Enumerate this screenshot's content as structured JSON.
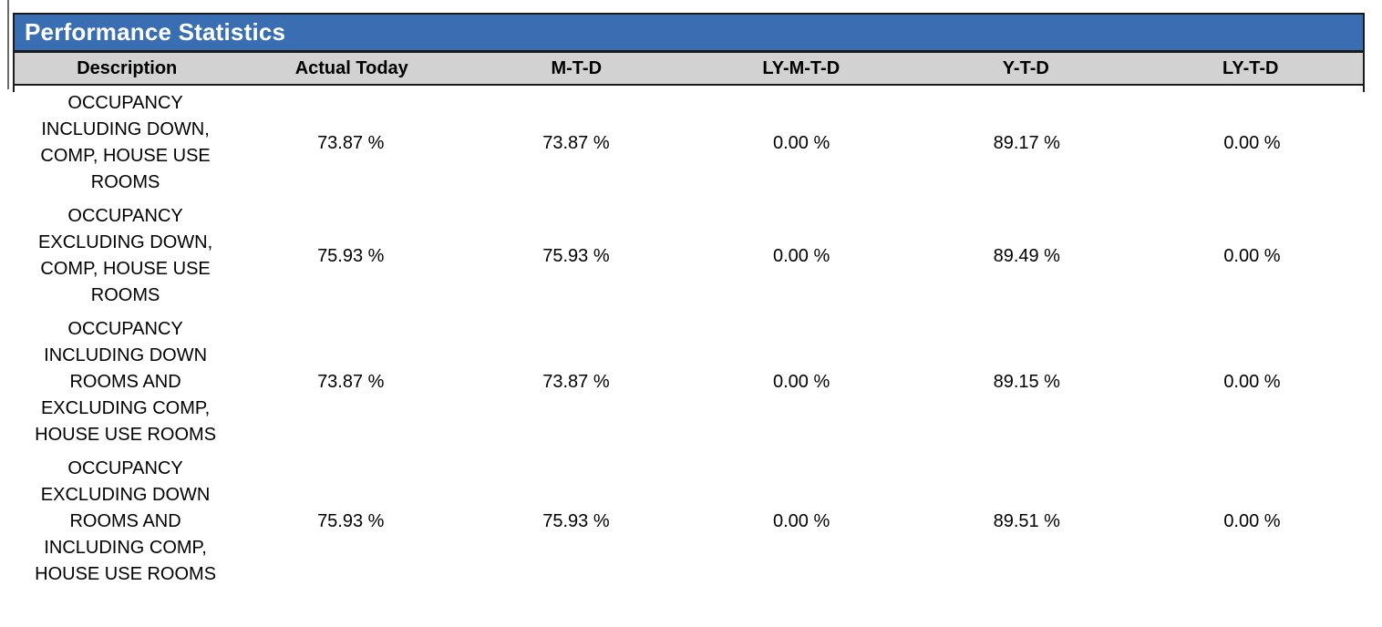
{
  "report": {
    "title": "Performance Statistics",
    "columns": [
      {
        "label": "Description"
      },
      {
        "label": "Actual Today"
      },
      {
        "label": "M-T-D"
      },
      {
        "label": "LY-M-T-D"
      },
      {
        "label": "Y-T-D"
      },
      {
        "label": "LY-T-D"
      }
    ],
    "rows": [
      {
        "description": "OCCUPANCY\nINCLUDING DOWN,\nCOMP, HOUSE USE\nROOMS",
        "actual_today": "73.87 %",
        "mtd": "73.87 %",
        "ly_mtd": "0.00 %",
        "ytd": "89.17 %",
        "ly_td": "0.00 %"
      },
      {
        "description": "OCCUPANCY\nEXCLUDING DOWN,\nCOMP, HOUSE USE\nROOMS",
        "actual_today": "75.93 %",
        "mtd": "75.93 %",
        "ly_mtd": "0.00 %",
        "ytd": "89.49 %",
        "ly_td": "0.00 %"
      },
      {
        "description": "OCCUPANCY\nINCLUDING DOWN\nROOMS AND\nEXCLUDING COMP,\nHOUSE USE ROOMS",
        "actual_today": "73.87 %",
        "mtd": "73.87 %",
        "ly_mtd": "0.00 %",
        "ytd": "89.15 %",
        "ly_td": "0.00 %"
      },
      {
        "description": "OCCUPANCY\nEXCLUDING DOWN\nROOMS AND\nINCLUDING COMP,\nHOUSE USE ROOMS",
        "actual_today": "75.93 %",
        "mtd": "75.93 %",
        "ly_mtd": "0.00 %",
        "ytd": "89.51 %",
        "ly_td": "0.00 %"
      }
    ]
  },
  "colors": {
    "title_bar_background": "#3A6EB2",
    "title_text": "#FFFFFF",
    "column_header_background": "#D2D2D2",
    "table_border": "#1A1A1A",
    "body_text": "#000000"
  }
}
